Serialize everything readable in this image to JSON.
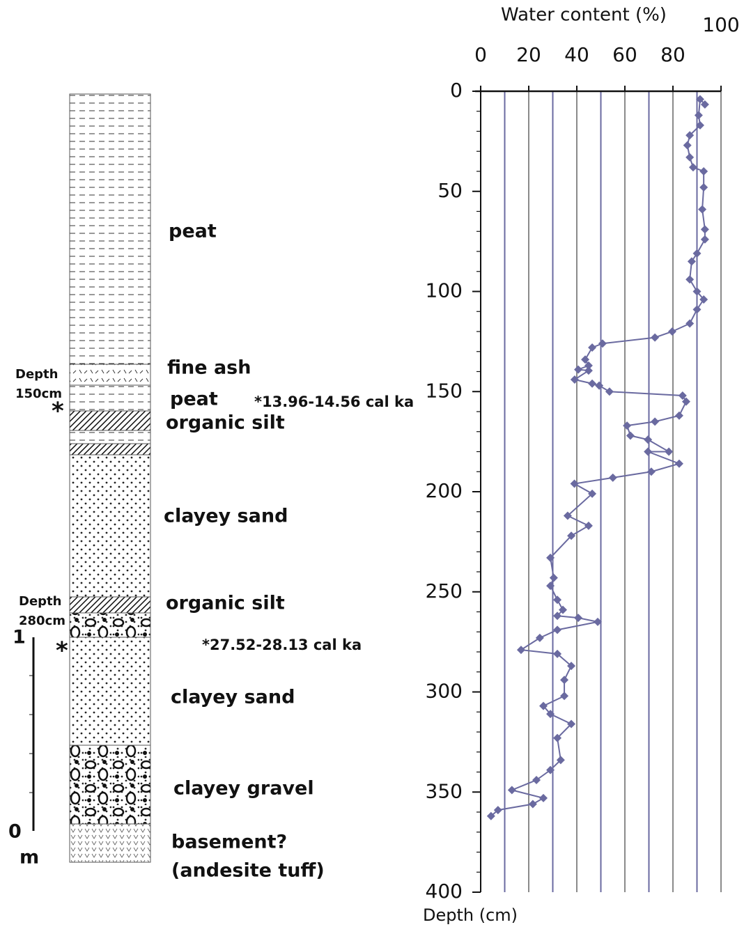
{
  "chart_data": {
    "type": "line",
    "title": "Water content (%)",
    "y_label": "Depth (cm)",
    "color": "#6a6aa0",
    "x": [
      93.3,
      91.3,
      90.7,
      91.3,
      87.0,
      86.0,
      87.0,
      88.4,
      92.8,
      92.8,
      92.2,
      93.3,
      93.3,
      90.0,
      87.8,
      87.0,
      90.0,
      92.8,
      90.0,
      87.0,
      79.7,
      72.5,
      50.7,
      46.4,
      43.5,
      44.9,
      40.6,
      44.9,
      39.1,
      46.4,
      49.3,
      53.6,
      84.0,
      85.5,
      82.6,
      72.5,
      60.9,
      62.3,
      69.6,
      78.3,
      69.6,
      82.6,
      71.0,
      55.0,
      39.0,
      46.4,
      36.2,
      44.9,
      37.7,
      29.0,
      30.4,
      29.0,
      31.9,
      34.2,
      31.9,
      40.6,
      48.7,
      31.9,
      24.6,
      16.8,
      31.9,
      37.7,
      34.8,
      34.8,
      26.1,
      29.0,
      37.7,
      31.9,
      33.3,
      29.0,
      23.2,
      13.0,
      26.1,
      21.7,
      7.2,
      4.3
    ],
    "values": [
      6.6,
      4,
      12,
      17,
      22,
      27,
      33,
      38,
      40,
      48,
      59,
      69,
      74,
      81,
      85,
      94,
      100,
      104,
      109,
      116,
      120,
      123,
      126,
      128,
      134,
      137,
      139,
      139.5,
      144,
      146,
      147,
      150,
      152,
      155,
      162,
      165,
      167,
      172,
      174,
      180,
      180,
      186,
      190,
      193,
      196,
      201,
      212,
      217,
      222,
      233,
      243,
      247,
      254,
      259,
      262,
      263,
      265,
      269,
      273,
      279,
      281,
      287,
      294,
      302,
      307,
      311,
      316,
      323,
      334,
      339,
      344,
      349,
      353,
      356,
      359,
      362
    ],
    "xlim": [
      0,
      100
    ],
    "xticks": [
      0,
      20,
      40,
      60,
      80,
      100
    ],
    "ylim": [
      0,
      400
    ],
    "yticks": [
      0,
      50,
      100,
      150,
      200,
      250,
      300,
      350,
      400
    ],
    "y_reversed": true,
    "y_minor_step": 10,
    "xgrid": [
      10,
      20,
      30,
      40,
      50,
      60,
      70,
      80,
      90,
      100
    ],
    "grid_colors": [
      "#6a6aa0",
      "#8a8a8a"
    ]
  },
  "column": {
    "layers": [
      "peat",
      "fine ash",
      "peat",
      "organic silt",
      "clayey sand",
      "organic silt",
      "clayey sand",
      "clayey gravel",
      "basement?",
      "(andesite tuff)"
    ],
    "depths": [
      [
        "Depth",
        "150cm"
      ],
      [
        "Depth",
        "280cm"
      ]
    ],
    "markers": [
      "*",
      "*"
    ],
    "dates": [
      "*13.96-14.56 cal ka",
      "*27.52-28.13 cal ka"
    ],
    "scale": [
      "1",
      "0",
      "m"
    ]
  }
}
